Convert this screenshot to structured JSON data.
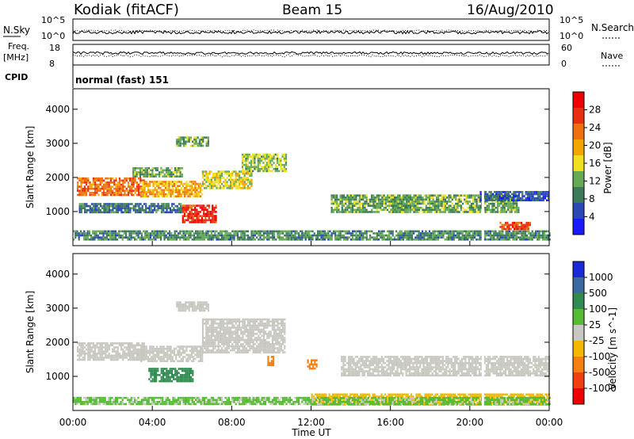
{
  "header": {
    "station": "Kodiak (fitACF)",
    "beam": "Beam 15",
    "date": "16/Aug/2010",
    "mode": "normal (fast) 151"
  },
  "summary_labels": {
    "nsky": "N.Sky",
    "nsearch": "N.Search",
    "freq": "Freq.",
    "freq_unit": "[MHz]",
    "nave": "Nave",
    "cpid": "CPID",
    "noise_top": "10^5",
    "noise_bottom": "10^0",
    "freq_top": "18",
    "freq_bottom": "8",
    "nave_top": "60",
    "nave_bottom": "0"
  },
  "colors": {
    "power": [
      "#1a1aff",
      "#2a49b4",
      "#3c7a5a",
      "#66aa55",
      "#f0e020",
      "#f5a500",
      "#f07010",
      "#e83010",
      "#ee0000"
    ],
    "velocity": [
      "#1a2ad8",
      "#3a6aa0",
      "#2f8b4f",
      "#55bb33",
      "#c8c8c0",
      "#f5b800",
      "#f57f10",
      "#f04010",
      "#ee0000"
    ]
  },
  "chart_data": [
    {
      "type": "heatmap",
      "title": "Power",
      "ylabel": "Slant Range [km]",
      "yticks": [
        "1000",
        "2000",
        "3000",
        "4000"
      ],
      "colorbar": {
        "label": "Power [dB]",
        "ticks": [
          "4",
          "8",
          "12",
          "16",
          "20",
          "24",
          "28"
        ]
      },
      "regions": [
        {
          "x": [
            0.2,
            3.6
          ],
          "y": [
            1500,
            2000
          ],
          "value": 26
        },
        {
          "x": [
            3.4,
            6.5
          ],
          "y": [
            1450,
            1900
          ],
          "value": 22
        },
        {
          "x": [
            6.5,
            9.0
          ],
          "y": [
            1700,
            2200
          ],
          "value": 18
        },
        {
          "x": [
            8.5,
            10.7
          ],
          "y": [
            2200,
            2700
          ],
          "value": 16
        },
        {
          "x": [
            3.0,
            5.5
          ],
          "y": [
            2000,
            2300
          ],
          "value": 14
        },
        {
          "x": [
            5.2,
            6.8
          ],
          "y": [
            2900,
            3200
          ],
          "value": 14
        },
        {
          "x": [
            0.3,
            5.5
          ],
          "y": [
            980,
            1250
          ],
          "value": 10
        },
        {
          "x": [
            5.5,
            7.2
          ],
          "y": [
            700,
            1200
          ],
          "value": 30
        },
        {
          "x": [
            13.0,
            17.0
          ],
          "y": [
            1000,
            1500
          ],
          "value": 14
        },
        {
          "x": [
            16.0,
            22.5
          ],
          "y": [
            1000,
            1500
          ],
          "value": 14
        },
        {
          "x": [
            20.5,
            24.0
          ],
          "y": [
            1300,
            1600
          ],
          "value": 8
        },
        {
          "x": [
            21.5,
            23.0
          ],
          "y": [
            500,
            700
          ],
          "value": 28
        },
        {
          "x": [
            0.0,
            24.0
          ],
          "y": [
            200,
            450
          ],
          "value": 12
        }
      ]
    },
    {
      "type": "heatmap",
      "title": "Velocity",
      "ylabel": "Slant Range [km]",
      "xlabel": "Time UT",
      "xticks": [
        "00:00",
        "04:00",
        "08:00",
        "12:00",
        "16:00",
        "20:00",
        "00:00"
      ],
      "yticks": [
        "1000",
        "2000",
        "3000",
        "4000"
      ],
      "colorbar": {
        "label": "Velocity [m s^-1]",
        "ticks": [
          "1000",
          "500",
          "100",
          "25",
          "-25",
          "-100",
          "-500",
          "-1000"
        ]
      },
      "regions": [
        {
          "x": [
            0.2,
            3.6
          ],
          "y": [
            1500,
            2000
          ],
          "value": 0
        },
        {
          "x": [
            3.4,
            6.5
          ],
          "y": [
            1450,
            1900
          ],
          "value": 0
        },
        {
          "x": [
            6.5,
            10.7
          ],
          "y": [
            1700,
            2700
          ],
          "value": 0
        },
        {
          "x": [
            5.2,
            6.8
          ],
          "y": [
            2900,
            3200
          ],
          "value": 0
        },
        {
          "x": [
            13.5,
            24.0
          ],
          "y": [
            1000,
            1600
          ],
          "value": 0
        },
        {
          "x": [
            3.8,
            6.0
          ],
          "y": [
            850,
            1250
          ],
          "value": 150
        },
        {
          "x": [
            11.8,
            12.3
          ],
          "y": [
            1200,
            1500
          ],
          "value": -400
        },
        {
          "x": [
            9.8,
            10.1
          ],
          "y": [
            1300,
            1600
          ],
          "value": -200
        },
        {
          "x": [
            12.0,
            24.0
          ],
          "y": [
            150,
            500
          ],
          "value": -60
        },
        {
          "x": [
            0.0,
            24.0
          ],
          "y": [
            200,
            400
          ],
          "value": 30
        }
      ]
    }
  ]
}
